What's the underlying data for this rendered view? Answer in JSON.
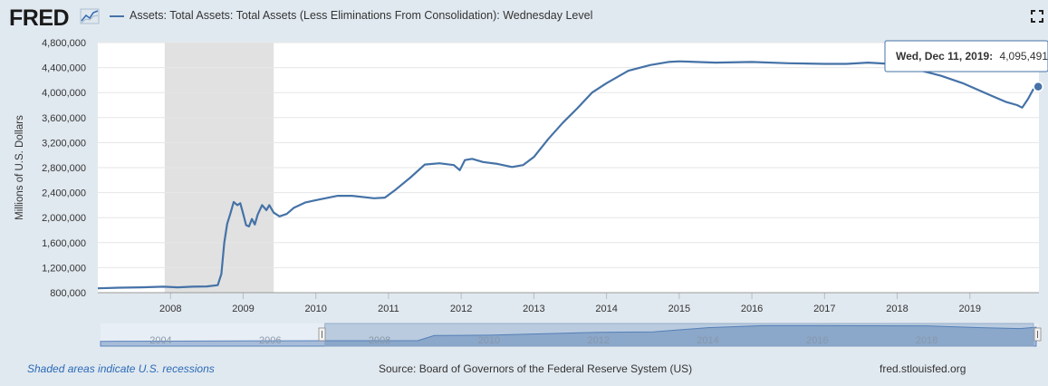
{
  "header": {
    "logo_text": "FRED",
    "legend_label": "Assets: Total Assets: Total Assets (Less Eliminations From Consolidation): Wednesday Level",
    "line_color": "#4572a7",
    "fullscreen_icon": "fullscreen-icon",
    "logo_icon": "chart-line-icon"
  },
  "chart_data": {
    "type": "line",
    "title": "Assets: Total Assets: Total Assets (Less Eliminations From Consolidation): Wednesday Level",
    "xlabel": "",
    "ylabel": "Millions of U.S. Dollars",
    "xlim": [
      2007.0,
      2019.95
    ],
    "ylim": [
      800000,
      4800000
    ],
    "y_ticks": [
      800000,
      1200000,
      1600000,
      2000000,
      2400000,
      2800000,
      3200000,
      3600000,
      4000000,
      4400000,
      4800000
    ],
    "y_tick_labels": [
      "800,000",
      "1,200,000",
      "1,600,000",
      "2,000,000",
      "2,400,000",
      "2,800,000",
      "3,200,000",
      "3,600,000",
      "4,000,000",
      "4,400,000",
      "4,800,000"
    ],
    "x_ticks": [
      2008,
      2009,
      2010,
      2011,
      2012,
      2013,
      2014,
      2015,
      2016,
      2017,
      2018,
      2019
    ],
    "x_tick_labels": [
      "2008",
      "2009",
      "2010",
      "2011",
      "2012",
      "2013",
      "2014",
      "2015",
      "2016",
      "2017",
      "2018",
      "2019"
    ],
    "recessions": [
      [
        2007.92,
        2009.42
      ]
    ],
    "grid": true,
    "series": [
      {
        "name": "Total Assets (Wednesday Level)",
        "color": "#4572a7",
        "x": [
          2007.0,
          2007.3,
          2007.6,
          2007.9,
          2008.1,
          2008.3,
          2008.5,
          2008.65,
          2008.7,
          2008.74,
          2008.78,
          2008.82,
          2008.87,
          2008.92,
          2008.96,
          2009.0,
          2009.04,
          2009.08,
          2009.12,
          2009.16,
          2009.2,
          2009.26,
          2009.32,
          2009.36,
          2009.42,
          2009.5,
          2009.6,
          2009.7,
          2009.85,
          2010.0,
          2010.3,
          2010.5,
          2010.8,
          2010.95,
          2011.1,
          2011.3,
          2011.5,
          2011.7,
          2011.9,
          2011.98,
          2012.05,
          2012.15,
          2012.3,
          2012.5,
          2012.7,
          2012.85,
          2013.0,
          2013.2,
          2013.4,
          2013.6,
          2013.8,
          2014.0,
          2014.3,
          2014.6,
          2014.85,
          2015.0,
          2015.5,
          2016.0,
          2016.5,
          2017.0,
          2017.3,
          2017.6,
          2017.9,
          2018.1,
          2018.3,
          2018.6,
          2018.9,
          2019.1,
          2019.3,
          2019.5,
          2019.65,
          2019.72,
          2019.8,
          2019.87,
          2019.94
        ],
        "values": [
          870000,
          880000,
          885000,
          895000,
          885000,
          895000,
          900000,
          920000,
          1100000,
          1600000,
          1900000,
          2050000,
          2250000,
          2200000,
          2230000,
          2060000,
          1880000,
          1860000,
          1980000,
          1890000,
          2050000,
          2200000,
          2120000,
          2200000,
          2080000,
          2020000,
          2060000,
          2160000,
          2240000,
          2280000,
          2350000,
          2350000,
          2310000,
          2320000,
          2450000,
          2640000,
          2850000,
          2870000,
          2840000,
          2760000,
          2920000,
          2940000,
          2890000,
          2860000,
          2810000,
          2840000,
          2970000,
          3260000,
          3520000,
          3750000,
          4000000,
          4150000,
          4350000,
          4440000,
          4490000,
          4500000,
          4480000,
          4490000,
          4470000,
          4460000,
          4460000,
          4480000,
          4460000,
          4440000,
          4360000,
          4270000,
          4150000,
          4050000,
          3950000,
          3850000,
          3800000,
          3760000,
          3900000,
          4050000,
          4095491
        ]
      }
    ],
    "tooltip": {
      "date": "Wed, Dec 11, 2019:",
      "value": "4,095,491",
      "x": 2019.94,
      "y": 4095491
    },
    "navigator": {
      "labels": [
        "2004",
        "2006",
        "2008",
        "2010",
        "2012",
        "2014",
        "2016",
        "2018"
      ],
      "label_years": [
        2004,
        2006,
        2008,
        2010,
        2012,
        2014,
        2016,
        2018
      ],
      "xlim": [
        2002.9,
        2020.05
      ],
      "selected_range": [
        2007.0,
        2019.95
      ],
      "x": [
        2002.9,
        2004,
        2006,
        2007.5,
        2008.7,
        2009,
        2010,
        2012,
        2013,
        2014,
        2015,
        2016,
        2018,
        2019,
        2019.7,
        2020.0
      ],
      "values": [
        720000,
        760000,
        850000,
        880000,
        900000,
        2100000,
        2200000,
        2900000,
        3000000,
        4000000,
        4480000,
        4480000,
        4440000,
        4000000,
        3780000,
        4100000
      ]
    }
  },
  "footer": {
    "note": "Shaded areas indicate U.S. recessions",
    "source": "Source: Board of Governors of the Federal Reserve System (US)",
    "url": "fred.stlouisfed.org"
  }
}
